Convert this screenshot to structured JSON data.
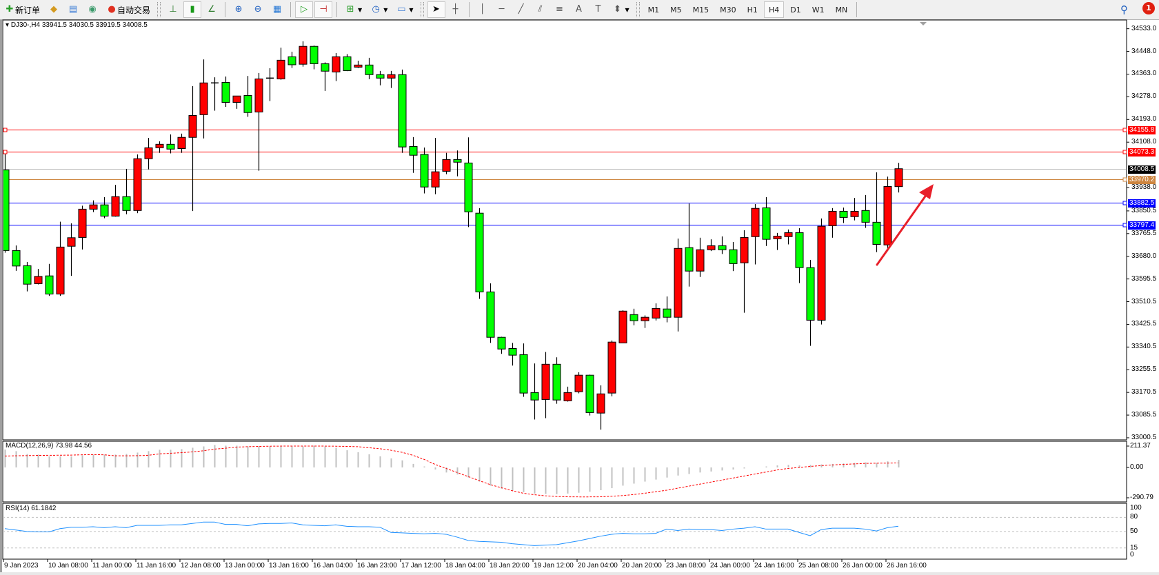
{
  "toolbar": {
    "new_order_label": "新订单",
    "auto_trading_label": "自动交易",
    "timeframes": [
      "M1",
      "M5",
      "M15",
      "M30",
      "H1",
      "H4",
      "D1",
      "W1",
      "MN"
    ],
    "active_timeframe": "H4",
    "notification_count": "1",
    "icons": [
      "new-order-icon",
      "market-watch-icon",
      "navigator-icon",
      "signals-icon",
      "auto-trading-icon",
      "bar-chart-icon",
      "candlestick-icon",
      "line-chart-icon",
      "zoom-in-icon",
      "zoom-out-icon",
      "tile-windows-icon",
      "auto-scroll-icon",
      "chart-shift-icon",
      "indicators-icon",
      "periods-icon",
      "templates-icon",
      "cursor-icon",
      "crosshair-icon",
      "vertical-line-icon",
      "horizontal-line-icon",
      "trendline-icon",
      "fibo-channel-icon",
      "fibo-icon",
      "text-icon",
      "text-label-icon",
      "arrows-icon",
      "search-icon",
      "notification-icon"
    ]
  },
  "chart": {
    "header": "DJ30-,H4  33941.5 34030.5 33919.5 34008.5",
    "price_ticks": [
      "34533.0",
      "34448.0",
      "34363.0",
      "34278.0",
      "34193.0",
      "34108.0",
      "33938.0",
      "33850.5",
      "33765.5",
      "33680.0",
      "33595.5",
      "33510.5",
      "33425.5",
      "33340.5",
      "33255.5",
      "33170.5",
      "33085.5",
      "33000.5"
    ],
    "levels": [
      {
        "value": "34155.8",
        "color": "#ff0000",
        "style": "line"
      },
      {
        "value": "34073.3",
        "color": "#ff0000",
        "style": "line"
      },
      {
        "value": "34008.5",
        "color": "#c0c0c0",
        "style": "bid",
        "tag_color": "#000000"
      },
      {
        "value": "33970.2",
        "color": "#cd853f",
        "style": "line"
      },
      {
        "value": "33882.5",
        "color": "#0000ff",
        "style": "line"
      },
      {
        "value": "33797.4",
        "color": "#0000ff",
        "style": "line"
      }
    ],
    "time_labels": [
      "9 Jan 2023",
      "10 Jan 08:00",
      "11 Jan 00:00",
      "11 Jan 16:00",
      "12 Jan 08:00",
      "13 Jan 00:00",
      "13 Jan 16:00",
      "16 Jan 04:00",
      "16 Jan 23:00",
      "17 Jan 12:00",
      "18 Jan 04:00",
      "18 Jan 20:00",
      "19 Jan 12:00",
      "20 Jan 04:00",
      "20 Jan 20:00",
      "23 Jan 08:00",
      "24 Jan 00:00",
      "24 Jan 16:00",
      "25 Jan 08:00",
      "26 Jan 00:00",
      "26 Jan 16:00"
    ],
    "macd_label": "MACD(12,26,9) 73.98 44.56",
    "macd_ticks": [
      "211.37",
      "0.00",
      "-290.79"
    ],
    "rsi_label": "RSI(14) 61.1842",
    "rsi_ticks": [
      "100",
      "80",
      "50",
      "15",
      "0"
    ],
    "colors": {
      "bull": "#ff0000",
      "bear": "#00ff00",
      "macd_hist": "#c0c0c0",
      "macd_signal": "#ff0000",
      "rsi": "#1e90ff",
      "arrow": "#e8202a"
    }
  },
  "chart_data": [
    {
      "type": "candlestick",
      "symbol": "DJ30-",
      "timeframe": "H4",
      "ylim": [
        33000.5,
        34533.0
      ],
      "ohlc": [
        [
          34004,
          34077,
          33694,
          33702
        ],
        [
          33702,
          33721,
          33626,
          33644
        ],
        [
          33645,
          33659,
          33549,
          33576
        ],
        [
          33578,
          33633,
          33575,
          33605
        ],
        [
          33607,
          33652,
          33532,
          33539
        ],
        [
          33539,
          33810,
          33532,
          33715
        ],
        [
          33718,
          33804,
          33607,
          33750
        ],
        [
          33751,
          33870,
          33706,
          33857
        ],
        [
          33857,
          33890,
          33846,
          33873
        ],
        [
          33873,
          33902,
          33823,
          33831
        ],
        [
          33831,
          33948,
          33829,
          33904
        ],
        [
          33904,
          34008,
          33838,
          33852
        ],
        [
          33852,
          34062,
          33842,
          34046
        ],
        [
          34046,
          34124,
          34006,
          34087
        ],
        [
          34087,
          34111,
          34068,
          34100
        ],
        [
          34100,
          34137,
          34066,
          34082
        ],
        [
          34084,
          34140,
          34068,
          34126
        ],
        [
          34126,
          34318,
          33850,
          34208
        ],
        [
          34211,
          34418,
          34122,
          34330
        ],
        [
          34329,
          34351,
          34226,
          34330
        ],
        [
          34332,
          34354,
          34240,
          34257
        ],
        [
          34257,
          34281,
          34233,
          34281
        ],
        [
          34283,
          34356,
          34203,
          34219
        ],
        [
          34221,
          34367,
          34001,
          34345
        ],
        [
          34347,
          34385,
          34262,
          34348
        ],
        [
          34345,
          34462,
          34342,
          34415
        ],
        [
          34428,
          34447,
          34386,
          34398
        ],
        [
          34400,
          34486,
          34391,
          34467
        ],
        [
          34467,
          34470,
          34381,
          34402
        ],
        [
          34402,
          34407,
          34300,
          34374
        ],
        [
          34371,
          34442,
          34337,
          34428
        ],
        [
          34428,
          34438,
          34374,
          34376
        ],
        [
          34389,
          34413,
          34386,
          34397
        ],
        [
          34397,
          34424,
          34344,
          34361
        ],
        [
          34361,
          34375,
          34321,
          34348
        ],
        [
          34348,
          34375,
          34311,
          34361
        ],
        [
          34361,
          34380,
          34068,
          34090
        ],
        [
          34092,
          34127,
          33993,
          34059
        ],
        [
          34062,
          34088,
          33916,
          33940
        ],
        [
          33940,
          34124,
          33913,
          33997
        ],
        [
          33999,
          34068,
          33988,
          34043
        ],
        [
          34043,
          34077,
          33980,
          34033
        ],
        [
          34030,
          34126,
          33790,
          33847
        ],
        [
          33842,
          33861,
          33521,
          33547
        ],
        [
          33547,
          33579,
          33356,
          33377
        ],
        [
          33377,
          33379,
          33315,
          33333
        ],
        [
          33335,
          33356,
          33271,
          33310
        ],
        [
          33312,
          33354,
          33154,
          33168
        ],
        [
          33170,
          33279,
          33069,
          33142
        ],
        [
          33144,
          33322,
          33074,
          33276
        ],
        [
          33276,
          33302,
          33128,
          33142
        ],
        [
          33139,
          33192,
          33136,
          33170
        ],
        [
          33173,
          33246,
          33167,
          33235
        ],
        [
          33235,
          33237,
          33084,
          33095
        ],
        [
          33093,
          33197,
          33031,
          33165
        ],
        [
          33168,
          33365,
          33156,
          33359
        ],
        [
          33356,
          33478,
          33356,
          33475
        ],
        [
          33462,
          33484,
          33422,
          33439
        ],
        [
          33439,
          33459,
          33412,
          33452
        ],
        [
          33449,
          33504,
          33440,
          33485
        ],
        [
          33483,
          33530,
          33433,
          33452
        ],
        [
          33452,
          33747,
          33399,
          33710
        ],
        [
          33713,
          33878,
          33567,
          33625
        ],
        [
          33625,
          33750,
          33603,
          33705
        ],
        [
          33705,
          33744,
          33700,
          33720
        ],
        [
          33720,
          33755,
          33689,
          33705
        ],
        [
          33705,
          33734,
          33625,
          33653
        ],
        [
          33656,
          33778,
          33469,
          33751
        ],
        [
          33754,
          33876,
          33650,
          33860
        ],
        [
          33862,
          33902,
          33719,
          33744
        ],
        [
          33746,
          33768,
          33704,
          33756
        ],
        [
          33754,
          33781,
          33725,
          33769
        ],
        [
          33769,
          33786,
          33580,
          33638
        ],
        [
          33638,
          33667,
          33345,
          33441
        ],
        [
          33441,
          33822,
          33425,
          33793
        ],
        [
          33795,
          33861,
          33750,
          33849
        ],
        [
          33849,
          33863,
          33805,
          33826
        ],
        [
          33829,
          33899,
          33815,
          33849
        ],
        [
          33852,
          33910,
          33787,
          33808
        ],
        [
          33808,
          33995,
          33696,
          33725
        ],
        [
          33723,
          33979,
          33700,
          33942
        ],
        [
          33941.5,
          34030.5,
          33919.5,
          34008.5
        ]
      ],
      "horizontal_lines": [
        34155.8,
        34073.3,
        34008.5,
        33970.2,
        33882.5,
        33797.4
      ],
      "annotation": "upward red arrow"
    },
    {
      "type": "bar+line",
      "indicator": "MACD(12,26,9)",
      "ylim": [
        -290.79,
        211.37
      ],
      "main": [
        177,
        161,
        134,
        127,
        109,
        109,
        109,
        120,
        127,
        127,
        127,
        134,
        147,
        161,
        175,
        175,
        181,
        195,
        208,
        222,
        215,
        215,
        208,
        208,
        208,
        208,
        208,
        208,
        215,
        208,
        195,
        170,
        150,
        130,
        110,
        90,
        70,
        35,
        10,
        -20,
        -50,
        -70,
        -100,
        -140,
        -180,
        -210,
        -230,
        -245,
        -258,
        -262,
        -263,
        -258,
        -250,
        -240,
        -225,
        -205,
        -180,
        -160,
        -140,
        -120,
        -100,
        -80,
        -65,
        -50,
        -40,
        -30,
        -20,
        -10,
        0,
        10,
        20,
        25,
        20,
        25,
        30,
        35,
        40,
        45,
        50,
        45,
        60,
        73.98
      ],
      "signal": [
        113,
        115,
        117,
        119,
        120,
        121,
        122,
        125,
        127,
        125,
        115,
        115,
        116,
        120,
        134,
        140,
        146,
        154,
        165,
        181,
        190,
        201,
        205,
        208,
        210,
        211,
        211,
        211,
        211,
        211,
        210,
        208,
        205,
        195,
        185,
        170,
        150,
        120,
        80,
        30,
        -10,
        -50,
        -90,
        -130,
        -170,
        -200,
        -230,
        -255,
        -270,
        -280,
        -287,
        -290,
        -291,
        -291,
        -290,
        -285,
        -278,
        -268,
        -255,
        -240,
        -225,
        -205,
        -185,
        -165,
        -145,
        -125,
        -105,
        -85,
        -65,
        -45,
        -25,
        -10,
        0,
        10,
        18,
        25,
        30,
        35,
        40,
        42,
        43,
        44.56
      ]
    },
    {
      "type": "line",
      "indicator": "RSI(14)",
      "ylim": [
        0,
        100
      ],
      "levels": [
        80,
        50,
        15
      ],
      "values": [
        56,
        53,
        50,
        49,
        49,
        56,
        59,
        59,
        60,
        58,
        60,
        58,
        63,
        63,
        63,
        64,
        64,
        67,
        70,
        70,
        65,
        65,
        62,
        66,
        67,
        67,
        68,
        64,
        63,
        62,
        64,
        61,
        60,
        60,
        59,
        48,
        47,
        46,
        45,
        46,
        44,
        38,
        31,
        29,
        28,
        27,
        24,
        22,
        20,
        21,
        22,
        26,
        30,
        35,
        40,
        44,
        46,
        45,
        45,
        46,
        55,
        52,
        55,
        54,
        54,
        52,
        55,
        57,
        60,
        55,
        55,
        55,
        48,
        41,
        54,
        57,
        57,
        57,
        55,
        51,
        58,
        61.18
      ]
    }
  ]
}
